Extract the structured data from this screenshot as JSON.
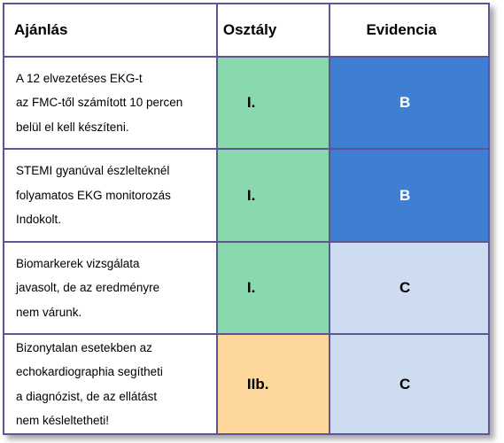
{
  "header": {
    "recommendation": "Ajánlás",
    "class": "Osztály",
    "evidence": "Evidencia"
  },
  "colors": {
    "border": "#5c5694",
    "class_I": "#8ad8ad",
    "class_IIb": "#fdd79c",
    "evidence_B": "#3f7fd3",
    "evidence_C": "#cddcf1",
    "text_on_B": "#ffffff",
    "text_on_C": "#000000"
  },
  "rows": [
    {
      "lines": [
        "A 12 elvezetéses EKG-t",
        "az FMC-től számított 10 percen",
        "belül el kell készíteni."
      ],
      "class": "I.",
      "evidence": "B"
    },
    {
      "lines": [
        "STEMI gyanúval észlelteknél",
        "folyamatos EKG monitorozás",
        "Indokolt."
      ],
      "class": "I.",
      "evidence": "B"
    },
    {
      "lines": [
        "Biomarkerek vizsgálata",
        "javasolt, de az eredményre",
        "nem várunk."
      ],
      "class": "I.",
      "evidence": "C"
    },
    {
      "lines": [
        "Bizonytalan esetekben az",
        "echokardiographia segítheti",
        "a diagnózist, de az ellátást",
        "nem késleltetheti!"
      ],
      "class": "IIb.",
      "evidence": "C"
    }
  ]
}
